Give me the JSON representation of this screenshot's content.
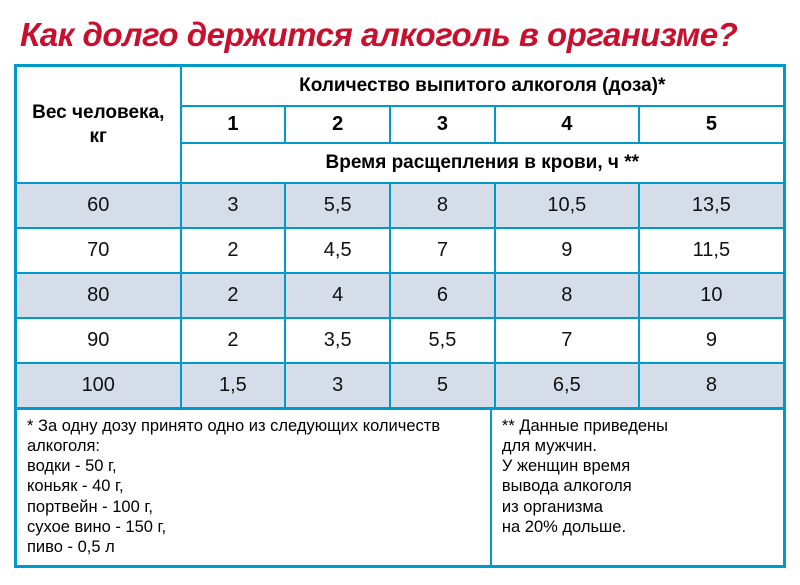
{
  "title": "Как долго держится алкоголь в организме?",
  "headers": {
    "weight": "Вес человека, кг",
    "dose": "Количество выпитого алкоголя (доза)*",
    "dose_nums": [
      "1",
      "2",
      "3",
      "4",
      "5"
    ],
    "time": "Время расщепления в крови, ч **"
  },
  "table": {
    "type": "table",
    "stripe_color": "#d5dde8",
    "plain_color": "#ffffff",
    "border_color": "#0099cc",
    "title_color": "#c8102e",
    "rows": [
      {
        "weight": "60",
        "values": [
          "3",
          "5,5",
          "8",
          "10,5",
          "13,5"
        ]
      },
      {
        "weight": "70",
        "values": [
          "2",
          "4,5",
          "7",
          "9",
          "11,5"
        ]
      },
      {
        "weight": "80",
        "values": [
          "2",
          "4",
          "6",
          "8",
          "10"
        ]
      },
      {
        "weight": "90",
        "values": [
          "2",
          "3,5",
          "5,5",
          "7",
          "9"
        ]
      },
      {
        "weight": "100",
        "values": [
          "1,5",
          "3",
          "5",
          "6,5",
          "8"
        ]
      }
    ]
  },
  "footnotes": {
    "left_intro": "* За одну дозу принято одно из следующих количеств алкоголя:",
    "left_items": [
      "водки - 50 г,",
      "коньяк - 40 г,",
      "портвейн - 100 г,",
      "сухое вино - 150 г,",
      "пиво - 0,5 л"
    ],
    "right_lines": [
      "** Данные  приведены",
      "для мужчин.",
      "У женщин время",
      "вывода алкоголя",
      "из организма",
      "на 20% дольше."
    ]
  }
}
